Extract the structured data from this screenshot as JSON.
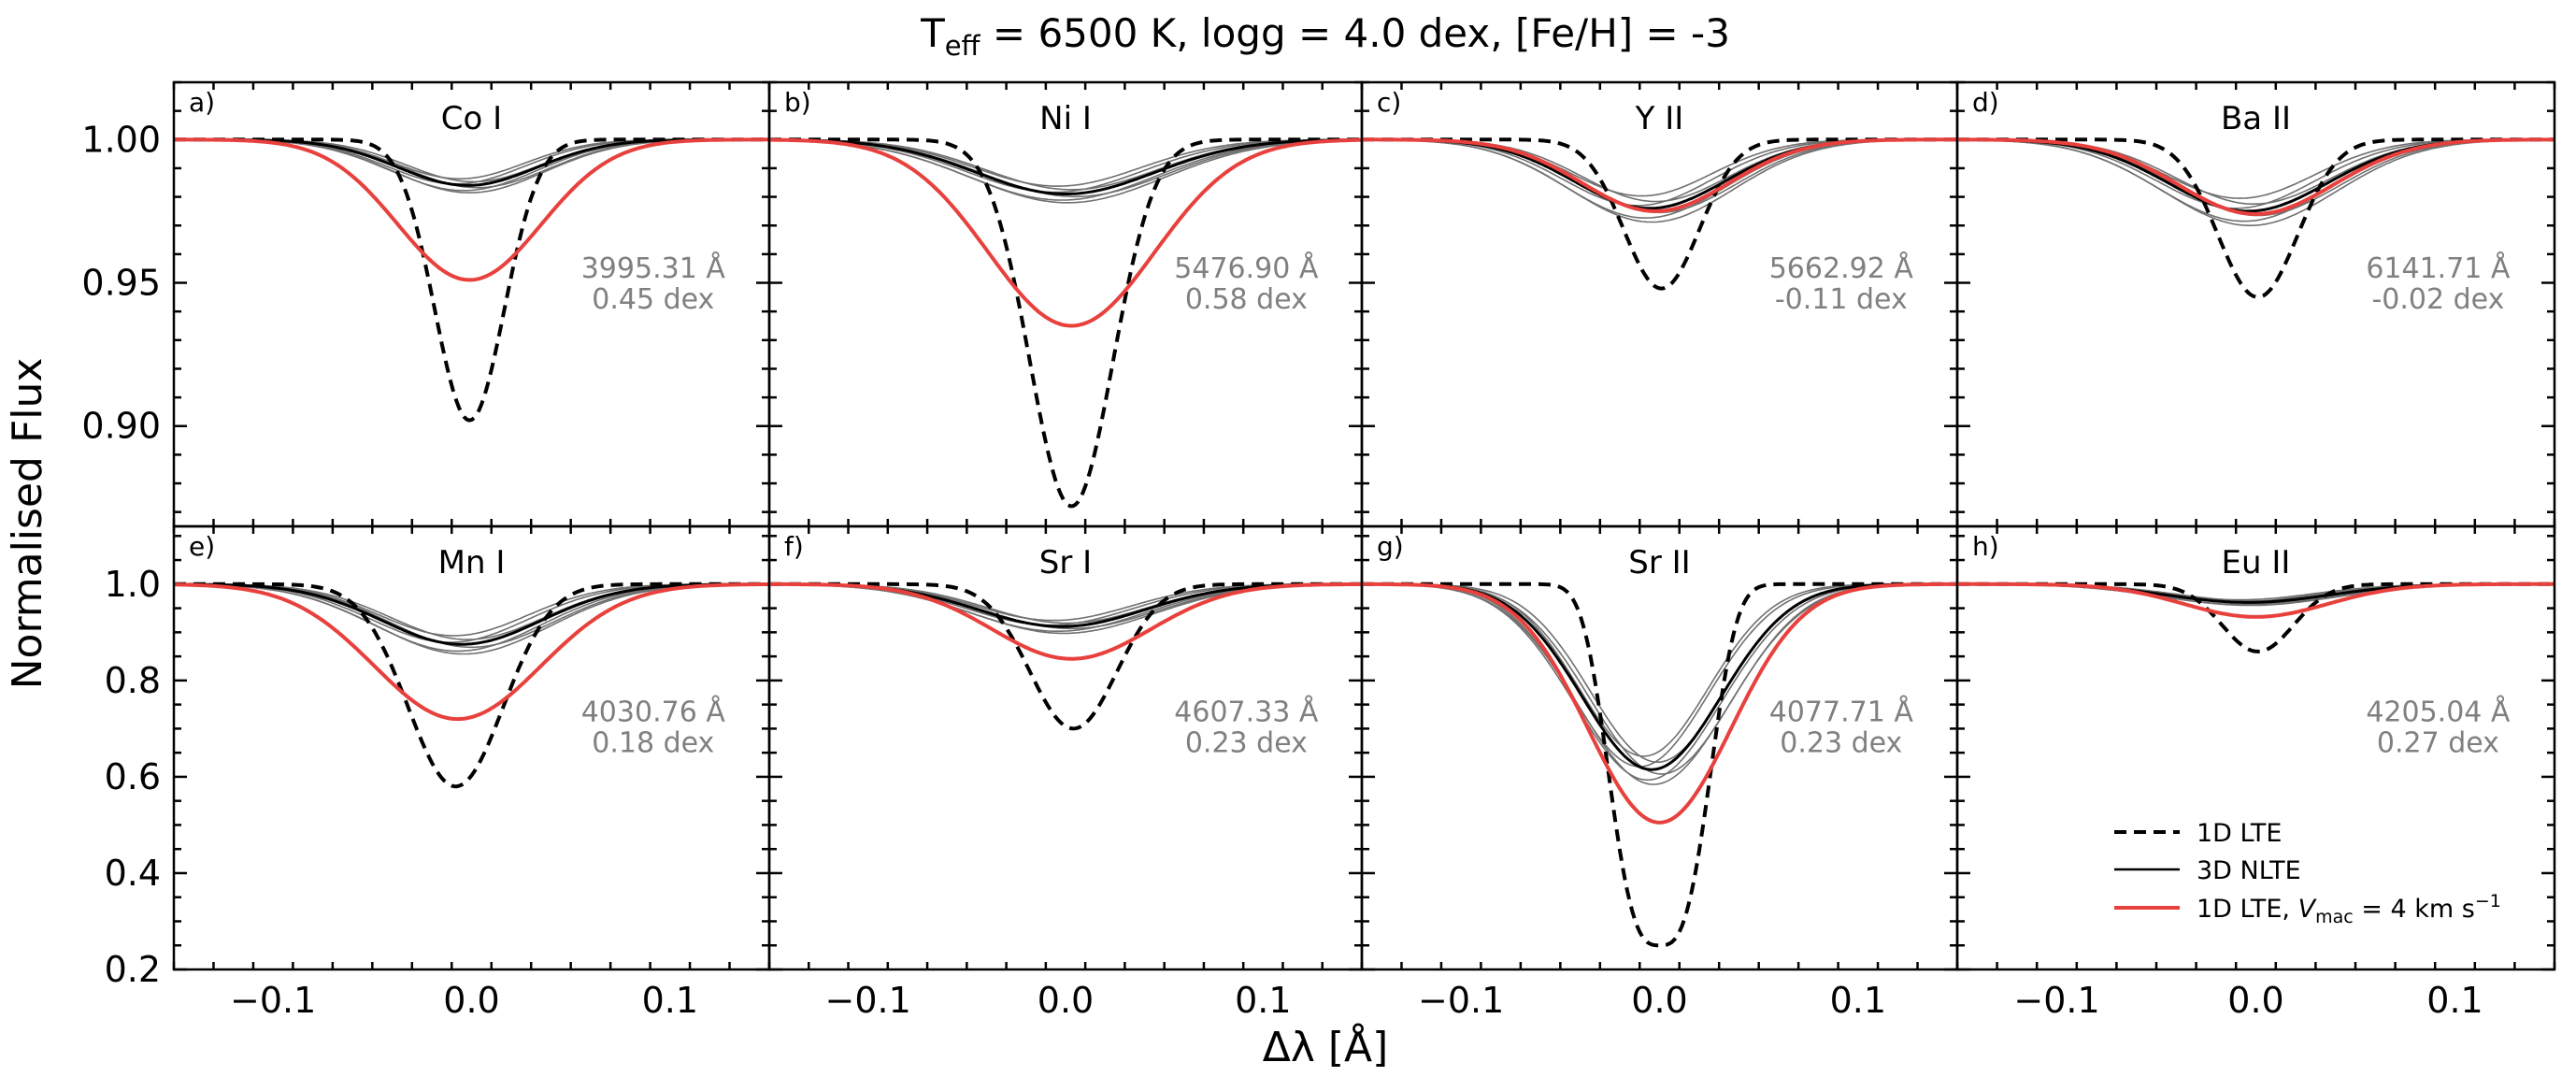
{
  "figure": {
    "title_parts": {
      "t": "T",
      "eff": "eff",
      "rest": " = 6500 K, logg = 4.0 dex, [Fe/H] = -3"
    },
    "xlabel": "Δλ [Å]",
    "ylabel": "Normalised Flux"
  },
  "legend": {
    "position": "lower-right of panel h",
    "items": [
      {
        "label": "1D LTE",
        "style": "dashed",
        "color": "#000000"
      },
      {
        "label": "3D NLTE",
        "style": "solid",
        "color": "#000000"
      },
      {
        "label_parts": {
          "pre": "1D LTE, ",
          "v": "V",
          "sub": "mac",
          "mid": " = 4 km s",
          "sup": "−1"
        },
        "style": "solid",
        "color": "#e8413d"
      }
    ]
  },
  "colors": {
    "lte": "#000000",
    "nlte": "#000000",
    "nlte_thin": "#707070",
    "mac": "#e8413d",
    "annotation": "#808080"
  },
  "chart_data": [
    {
      "type": "line",
      "letter": "a)",
      "title": "Co I",
      "line": "3995.31 Å",
      "dex": "0.45 dex",
      "row": 0,
      "col": 0,
      "xlim": [
        -0.15,
        0.15
      ],
      "ylim": [
        0.865,
        1.02
      ],
      "yticks": [
        0.9,
        0.95,
        1.0
      ],
      "ytick_labels": [
        "0.90",
        "0.95",
        "1.00"
      ],
      "x_ticks": [
        -0.1,
        0.0,
        0.1
      ],
      "x_tick_labels": [
        "−0.1",
        "0.0",
        "0.1"
      ],
      "lte": {
        "center": -0.001,
        "depth": 0.098,
        "sigma": 0.0175,
        "shape": "gaussian"
      },
      "nlte": {
        "center": -0.002,
        "depth": 0.016,
        "sigma": 0.035,
        "spread": 0.2
      },
      "mac": {
        "center": -0.001,
        "depth": 0.049,
        "sigma": 0.036
      }
    },
    {
      "type": "line",
      "letter": "b)",
      "title": "Ni I",
      "line": "5476.90 Å",
      "dex": "0.58 dex",
      "row": 0,
      "col": 1,
      "xlim": [
        -0.15,
        0.15
      ],
      "ylim": [
        0.865,
        1.02
      ],
      "lte": {
        "center": 0.003,
        "depth": 0.128,
        "sigma": 0.021,
        "shape": "gaussian"
      },
      "nlte": {
        "center": 0.0,
        "depth": 0.019,
        "sigma": 0.045,
        "spread": 0.2
      },
      "mac": {
        "center": 0.003,
        "depth": 0.065,
        "sigma": 0.042
      }
    },
    {
      "type": "line",
      "letter": "c)",
      "title": "Y II",
      "line": "5662.92 Å",
      "dex": "-0.11 dex",
      "row": 0,
      "col": 2,
      "xlim": [
        -0.15,
        0.15
      ],
      "ylim": [
        0.865,
        1.02
      ],
      "lte": {
        "center": 0.001,
        "depth": 0.052,
        "sigma": 0.019,
        "shape": "gaussian"
      },
      "nlte": {
        "center": -0.005,
        "depth": 0.024,
        "sigma": 0.038,
        "spread": 0.25
      },
      "mac": {
        "center": -0.002,
        "depth": 0.025,
        "sigma": 0.037
      }
    },
    {
      "type": "line",
      "letter": "d)",
      "title": "Ba II",
      "line": "6141.71 Å",
      "dex": "-0.02 dex",
      "row": 0,
      "col": 3,
      "xlim": [
        -0.15,
        0.15
      ],
      "ylim": [
        0.865,
        1.02
      ],
      "lte": {
        "center": 0.001,
        "depth": 0.055,
        "sigma": 0.02,
        "shape": "gaussian"
      },
      "nlte": {
        "center": -0.004,
        "depth": 0.025,
        "sigma": 0.04,
        "spread": 0.25
      },
      "mac": {
        "center": 0.0,
        "depth": 0.026,
        "sigma": 0.039
      }
    },
    {
      "type": "line",
      "letter": "e)",
      "title": "Mn I",
      "line": "4030.76 Å",
      "dex": "0.18 dex",
      "row": 1,
      "col": 0,
      "xlim": [
        -0.15,
        0.15
      ],
      "ylim": [
        0.2,
        1.12
      ],
      "yticks": [
        0.2,
        0.4,
        0.6,
        0.8,
        1.0
      ],
      "ytick_labels": [
        "0.2",
        "0.4",
        "0.6",
        "0.8",
        "1.0"
      ],
      "x_ticks": [
        -0.1,
        0.0,
        0.1
      ],
      "x_tick_labels": [
        "−0.1",
        "0.0",
        "0.1"
      ],
      "lte": {
        "center": -0.008,
        "depth": 0.42,
        "sigma": 0.024,
        "shape": "gaussian"
      },
      "nlte": {
        "center": -0.005,
        "depth": 0.125,
        "sigma": 0.04,
        "spread": 0.2
      },
      "mac": {
        "center": -0.007,
        "depth": 0.28,
        "sigma": 0.042
      }
    },
    {
      "type": "line",
      "letter": "f)",
      "title": "Sr I",
      "line": "4607.33 Å",
      "dex": "0.23 dex",
      "row": 1,
      "col": 1,
      "xlim": [
        -0.15,
        0.15
      ],
      "ylim": [
        0.2,
        1.12
      ],
      "lte": {
        "center": 0.004,
        "depth": 0.3,
        "sigma": 0.022,
        "shape": "gaussian"
      },
      "nlte": {
        "center": -0.002,
        "depth": 0.088,
        "sigma": 0.042,
        "spread": 0.2
      },
      "mac": {
        "center": 0.003,
        "depth": 0.155,
        "sigma": 0.04
      }
    },
    {
      "type": "line",
      "letter": "g)",
      "title": "Sr II",
      "line": "4077.71 Å",
      "dex": "0.23 dex",
      "row": 1,
      "col": 2,
      "xlim": [
        -0.15,
        0.15
      ],
      "ylim": [
        0.2,
        1.12
      ],
      "lte": {
        "center": 0.0,
        "depth": 0.75,
        "sigma": 0.022,
        "shape": "flat"
      },
      "nlte": {
        "center": -0.004,
        "depth": 0.385,
        "sigma": 0.035,
        "spread": 0.1
      },
      "mac": {
        "center": 0.0,
        "depth": 0.495,
        "sigma": 0.036
      }
    },
    {
      "type": "line",
      "letter": "h)",
      "title": "Eu II",
      "line": "4205.04 Å",
      "dex": "0.27 dex",
      "row": 1,
      "col": 3,
      "xlim": [
        -0.15,
        0.15
      ],
      "ylim": [
        0.2,
        1.12
      ],
      "lte": {
        "center": 0.001,
        "depth": 0.14,
        "sigma": 0.018,
        "shape": "gaussian"
      },
      "nlte": {
        "center": -0.004,
        "depth": 0.038,
        "sigma": 0.04,
        "spread": 0.2
      },
      "mac": {
        "center": 0.0,
        "depth": 0.068,
        "sigma": 0.036
      }
    }
  ]
}
